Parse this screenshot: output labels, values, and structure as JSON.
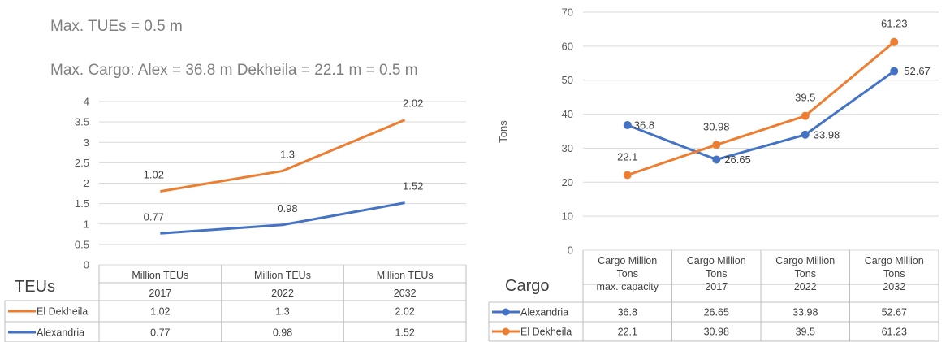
{
  "notes": {
    "max_teus": "Max. TUEs = 0.5 m",
    "max_cargo": "Max. Cargo: Alex = 36.8 m   Dekheila = 22.1 m = 0.5 m"
  },
  "chart_data": [
    {
      "type": "line",
      "title": "",
      "table_title": "TEUs",
      "xlabel": "",
      "ylabel": "",
      "ylim": [
        0,
        4
      ],
      "yticks": [
        "0",
        "0.5",
        "1",
        "1.5",
        "2",
        "2.5",
        "3",
        "3.5",
        "4"
      ],
      "categories": [
        [
          "Million TEUs",
          "2017"
        ],
        [
          "Million TEUs",
          "2022"
        ],
        [
          "Million TEUs",
          "2032"
        ]
      ],
      "series": [
        {
          "name": "El Dekheila",
          "color": "#ED7D31",
          "plot_values": [
            1.8,
            2.3,
            3.55
          ],
          "values": [
            1.02,
            1.3,
            2.02
          ],
          "labels": [
            "1.02",
            "1.3",
            "2.02"
          ]
        },
        {
          "name": "Alexandria",
          "color": "#4472C4",
          "plot_values": [
            0.77,
            0.98,
            1.52
          ],
          "values": [
            0.77,
            0.98,
            1.52
          ],
          "labels": [
            "0.77",
            "0.98",
            "1.52"
          ]
        }
      ],
      "grid": true,
      "legend": "data-table"
    },
    {
      "type": "line",
      "title": "",
      "table_title": "Cargo",
      "xlabel": "",
      "ylabel": "Tons",
      "ylim": [
        0,
        70
      ],
      "yticks": [
        "0",
        "10",
        "20",
        "30",
        "40",
        "50",
        "60",
        "70"
      ],
      "categories": [
        [
          "Cargo Million",
          "Tons",
          "max. capacity"
        ],
        [
          "Cargo Million",
          "Tons",
          "2017"
        ],
        [
          "Cargo Million",
          "Tons",
          "2022"
        ],
        [
          "Cargo Million",
          "Tons",
          "2032"
        ]
      ],
      "series": [
        {
          "name": "Alexandria",
          "color": "#4472C4",
          "values": [
            36.8,
            26.65,
            33.98,
            52.67
          ],
          "labels": [
            "36.8",
            "26.65",
            "33.98",
            "52.67"
          ]
        },
        {
          "name": "El Dekheila",
          "color": "#ED7D31",
          "values": [
            22.1,
            30.98,
            39.5,
            61.23
          ],
          "labels": [
            "22.1",
            "30.98",
            "39.5",
            "61.23"
          ]
        }
      ],
      "grid": true,
      "legend": "data-table"
    }
  ]
}
